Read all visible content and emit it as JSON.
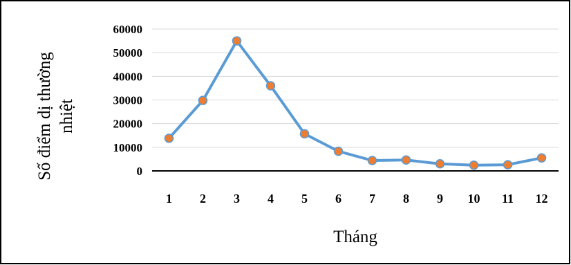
{
  "chart_data": {
    "type": "line",
    "title": "",
    "xlabel": "Tháng",
    "ylabel_lines": [
      "Số điểm dị thường",
      "nhiệt"
    ],
    "categories": [
      "1",
      "2",
      "3",
      "4",
      "5",
      "6",
      "7",
      "8",
      "9",
      "10",
      "11",
      "12"
    ],
    "series": [
      {
        "values": [
          13800,
          29800,
          55000,
          36000,
          15700,
          8300,
          4400,
          4600,
          3000,
          2400,
          2600,
          5500
        ],
        "line_color": "#5b9bd5",
        "marker_color": "#ed7d31"
      }
    ],
    "ylim": [
      0,
      60000
    ],
    "yticks": [
      "0",
      "10000",
      "20000",
      "30000",
      "40000",
      "50000",
      "60000"
    ],
    "grid": true,
    "legend": "none"
  }
}
